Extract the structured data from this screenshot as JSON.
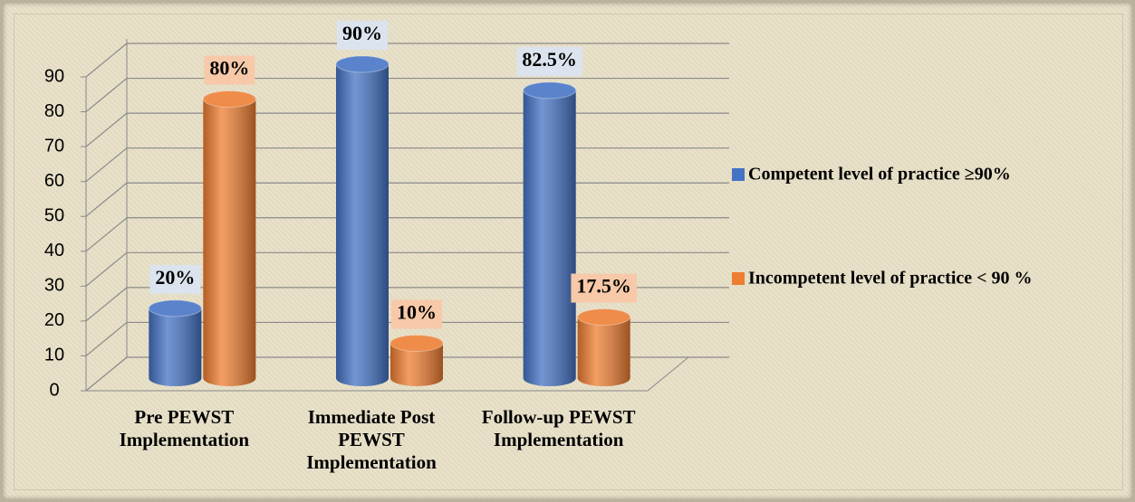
{
  "chart_data": {
    "type": "bar3d",
    "categories": [
      "Pre PEWST Implementation",
      "Immediate Post PEWST Implementation",
      "Follow-up PEWST Implementation"
    ],
    "series": [
      {
        "name": "Competent level of practice ≥90%",
        "color": "#4472c4",
        "values": [
          20,
          90,
          82.5
        ],
        "value_labels": [
          "20%",
          "90%",
          "82.5%"
        ]
      },
      {
        "name": "Incompetent level of practice < 90 %",
        "color": "#ed7d31",
        "values": [
          80,
          10,
          17.5
        ],
        "value_labels": [
          "80%",
          "10%",
          "17.5%"
        ]
      }
    ],
    "ylim": [
      0,
      90
    ],
    "yticks": [
      0,
      10,
      20,
      30,
      40,
      50,
      60,
      70,
      80,
      90
    ],
    "grid": true,
    "legend": "right"
  }
}
